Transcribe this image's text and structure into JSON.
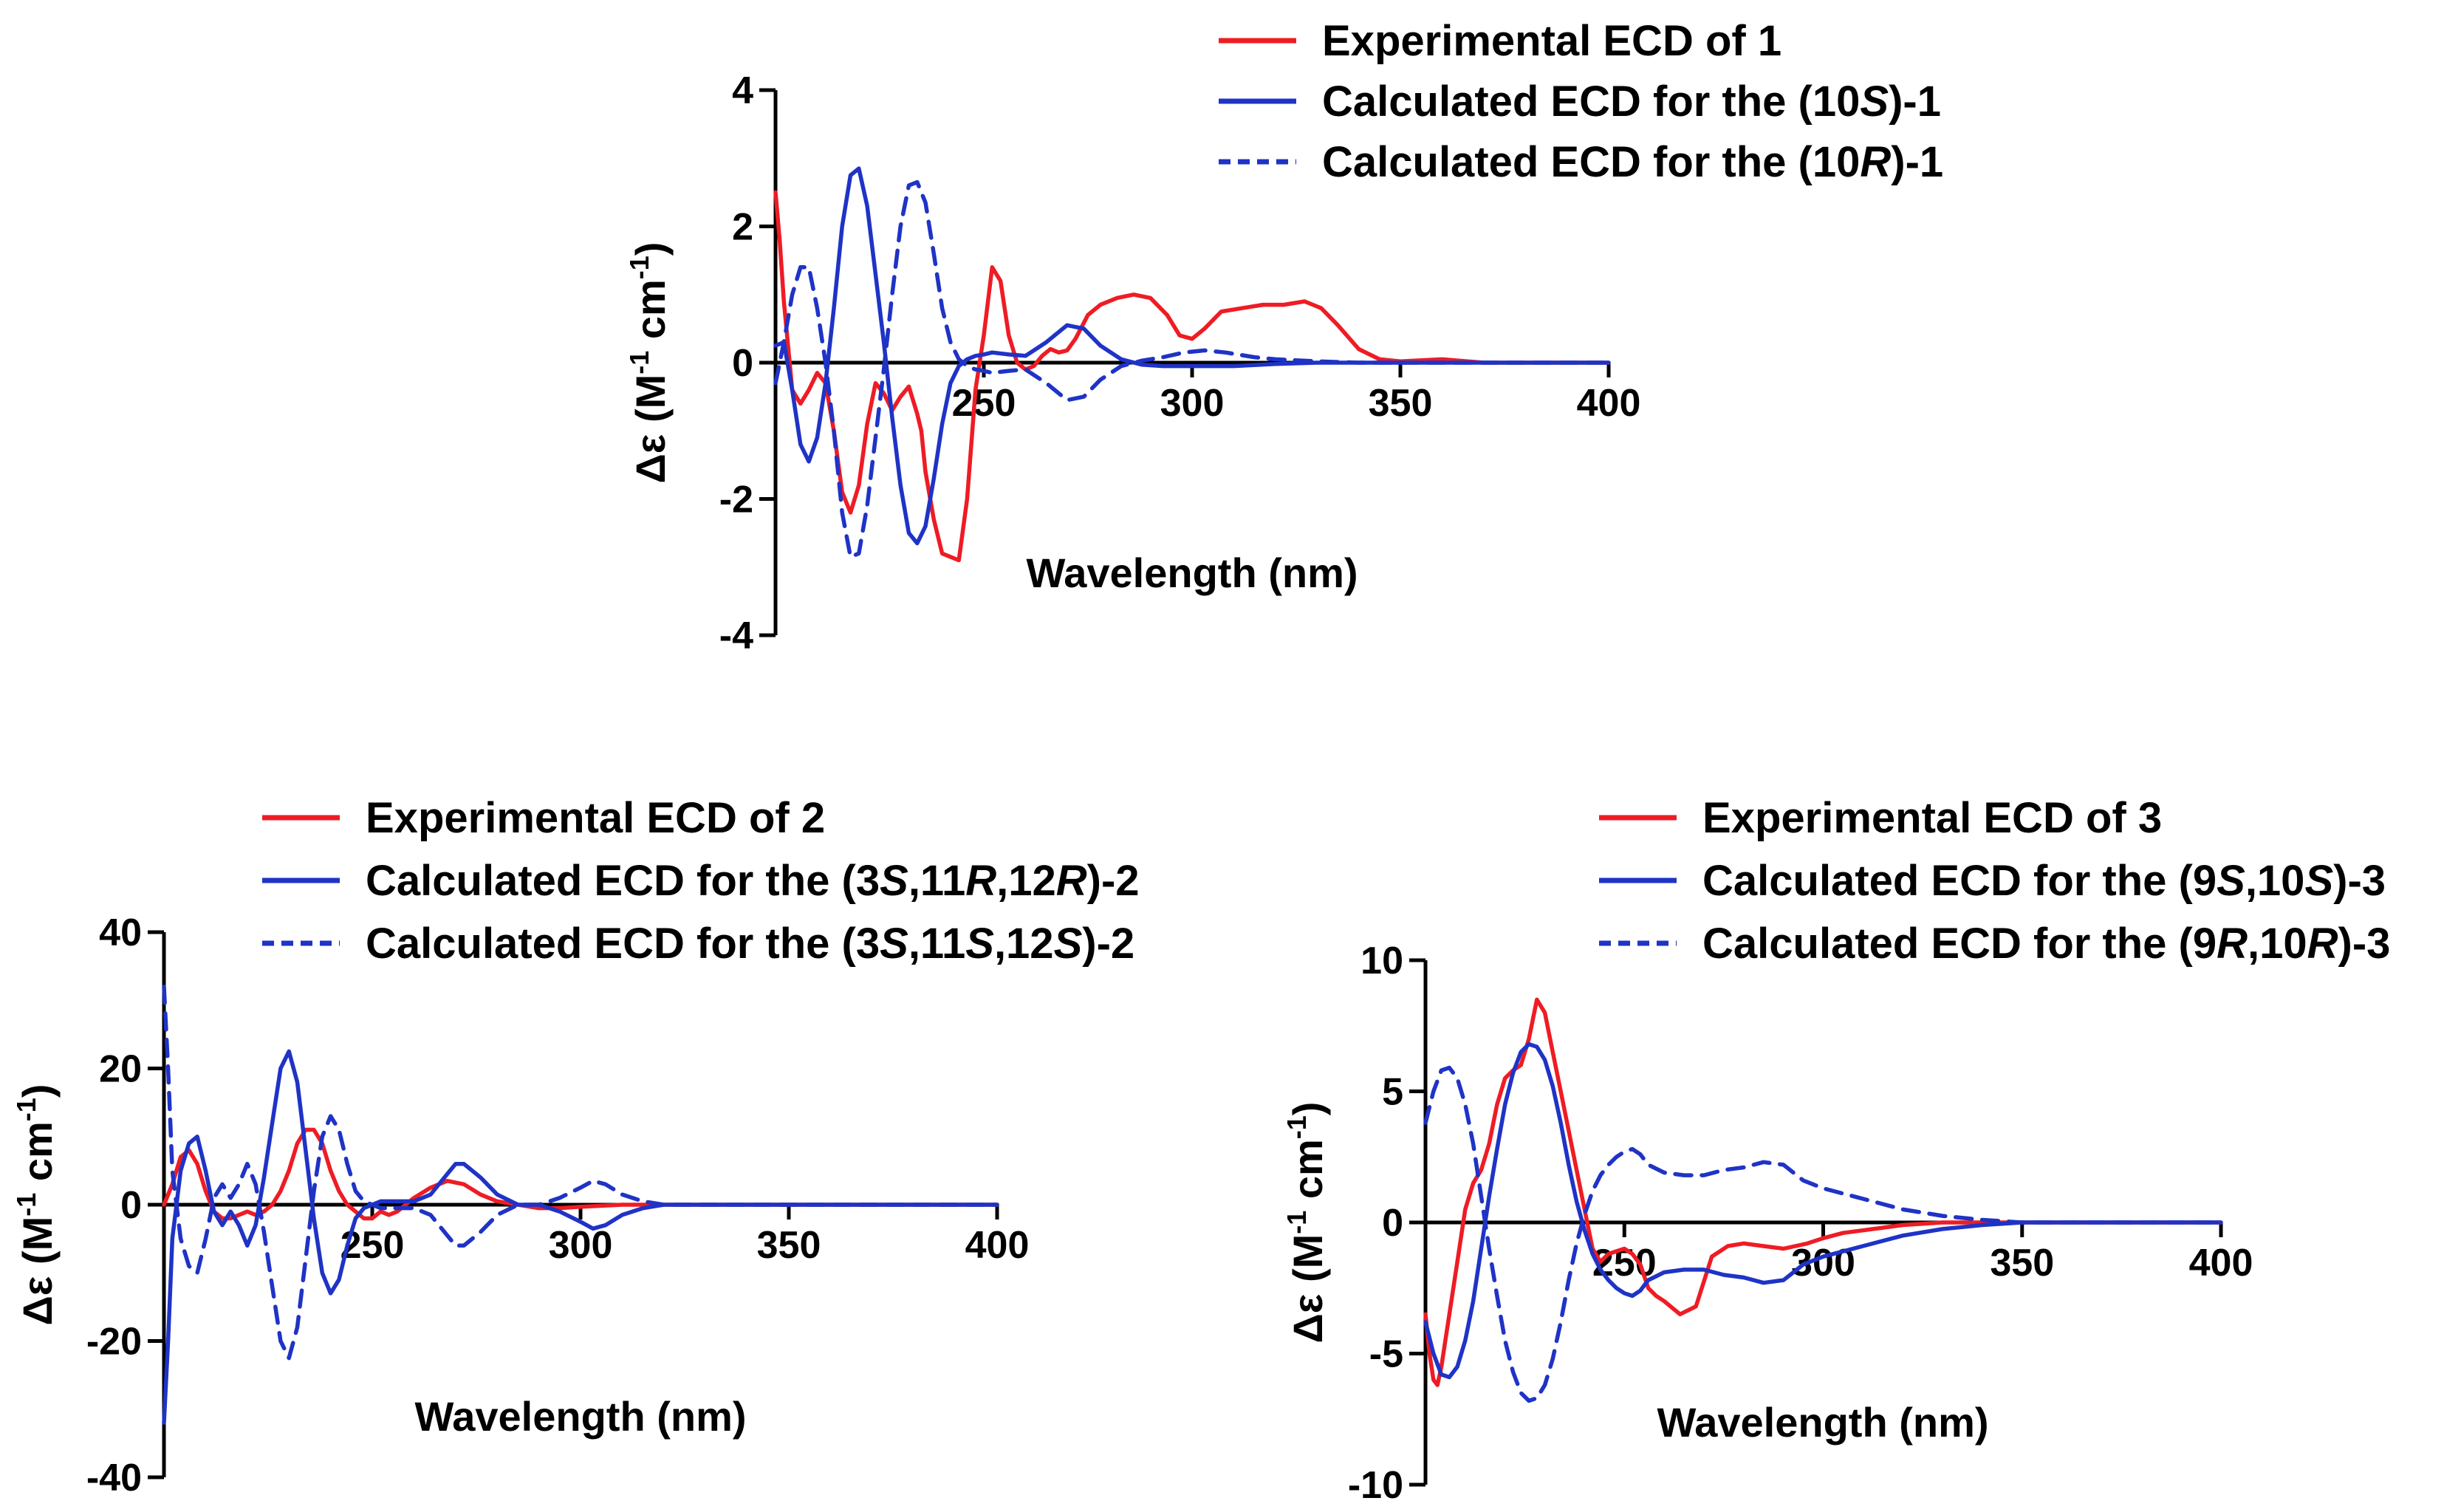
{
  "colors": {
    "experimental": "#ee1c24",
    "calculated": "#1f33c6",
    "axis": "#000000"
  },
  "chart_data": [
    {
      "type": "line",
      "panel": "compound-1",
      "title": "",
      "xlabel": "Wavelength (nm)",
      "ylabel_main": "Δε (M",
      "ylabel_sup1": "-1",
      "ylabel_mid": " cm",
      "ylabel_sup2": "-1",
      "ylabel_end": ")",
      "xlim": [
        200,
        400
      ],
      "ylim": [
        -4,
        4
      ],
      "xticks": [
        250,
        300,
        350,
        400
      ],
      "yticks": [
        -4,
        -2,
        0,
        2,
        4
      ],
      "legend_position": "top-right",
      "series": [
        {
          "name": "Experimental ECD of ",
          "name_suffix": "1",
          "color_key": "experimental",
          "dashed": false,
          "x": [
            200,
            201,
            202,
            204,
            206,
            208,
            210,
            212,
            214,
            216,
            218,
            220,
            222,
            224,
            226,
            228,
            230,
            232,
            234,
            235,
            236,
            238,
            240,
            242,
            244,
            246,
            248,
            250,
            252,
            254,
            256,
            258,
            260,
            262,
            264,
            266,
            268,
            270,
            272,
            275,
            278,
            282,
            286,
            290,
            294,
            297,
            300,
            303,
            307,
            312,
            317,
            322,
            327,
            331,
            335,
            340,
            345,
            350,
            360,
            370,
            380,
            390,
            400
          ],
          "y": [
            2.5,
            1.8,
            0.9,
            -0.4,
            -0.6,
            -0.4,
            -0.15,
            -0.3,
            -1.0,
            -1.9,
            -2.2,
            -1.8,
            -0.9,
            -0.3,
            -0.45,
            -0.7,
            -0.5,
            -0.35,
            -0.75,
            -1.0,
            -1.6,
            -2.3,
            -2.8,
            -2.85,
            -2.9,
            -2.0,
            -0.4,
            0.4,
            1.4,
            1.2,
            0.4,
            0.0,
            -0.1,
            -0.05,
            0.1,
            0.2,
            0.15,
            0.18,
            0.35,
            0.7,
            0.85,
            0.95,
            1.0,
            0.95,
            0.7,
            0.4,
            0.35,
            0.5,
            0.75,
            0.8,
            0.85,
            0.85,
            0.9,
            0.8,
            0.55,
            0.2,
            0.05,
            0.02,
            0.05,
            0.0,
            0.0,
            0.0,
            0.0
          ]
        },
        {
          "name": "Calculated ECD for the (10",
          "name_italic": "S",
          "name_suffix": ")-1",
          "color_key": "calculated",
          "dashed": false,
          "x": [
            200,
            202,
            204,
            206,
            208,
            210,
            212,
            214,
            216,
            218,
            220,
            222,
            224,
            226,
            228,
            230,
            232,
            234,
            236,
            238,
            240,
            242,
            244,
            246,
            248,
            250,
            252,
            256,
            260,
            265,
            270,
            274,
            278,
            283,
            288,
            293,
            300,
            310,
            320,
            330,
            340,
            350,
            360,
            380,
            400
          ],
          "y": [
            0.25,
            0.3,
            -0.4,
            -1.2,
            -1.45,
            -1.1,
            -0.3,
            0.8,
            2.0,
            2.75,
            2.85,
            2.3,
            1.3,
            0.3,
            -0.8,
            -1.8,
            -2.5,
            -2.65,
            -2.4,
            -1.7,
            -0.9,
            -0.3,
            -0.05,
            0.05,
            0.1,
            0.12,
            0.15,
            0.12,
            0.1,
            0.3,
            0.55,
            0.5,
            0.25,
            0.05,
            -0.03,
            -0.05,
            -0.05,
            -0.05,
            -0.02,
            0.0,
            0.0,
            0.0,
            0.0,
            0.0,
            0.0
          ]
        },
        {
          "name": "Calculated ECD for the (10",
          "name_italic": "R",
          "name_suffix": ")-1",
          "color_key": "calculated",
          "dashed": true,
          "x": [
            200,
            202,
            204,
            206,
            208,
            210,
            212,
            214,
            216,
            218,
            220,
            222,
            224,
            226,
            228,
            230,
            232,
            234,
            236,
            238,
            240,
            242,
            244,
            246,
            248,
            250,
            252,
            256,
            260,
            265,
            270,
            274,
            278,
            283,
            288,
            293,
            298,
            303,
            308,
            315,
            320,
            330,
            340,
            350,
            360,
            380,
            400
          ],
          "y": [
            -0.3,
            0.3,
            1.0,
            1.4,
            1.4,
            0.8,
            0.0,
            -1.0,
            -2.2,
            -2.85,
            -2.8,
            -2.1,
            -1.1,
            -0.1,
            1.0,
            2.0,
            2.6,
            2.65,
            2.35,
            1.6,
            0.8,
            0.3,
            0.05,
            -0.05,
            -0.1,
            -0.12,
            -0.15,
            -0.12,
            -0.1,
            -0.3,
            -0.55,
            -0.5,
            -0.25,
            -0.05,
            0.03,
            0.08,
            0.15,
            0.18,
            0.15,
            0.08,
            0.05,
            0.02,
            0.0,
            0.0,
            0.0,
            0.0,
            0.0
          ]
        }
      ]
    },
    {
      "type": "line",
      "panel": "compound-2",
      "title": "",
      "xlabel": "Wavelength (nm)",
      "ylabel_main": "Δε (M",
      "ylabel_sup1": "-1",
      "ylabel_mid": " cm",
      "ylabel_sup2": "-1",
      "ylabel_end": ")",
      "xlim": [
        200,
        400
      ],
      "ylim": [
        -40,
        40
      ],
      "xticks": [
        250,
        300,
        350,
        400
      ],
      "yticks": [
        -40,
        -20,
        0,
        20,
        40
      ],
      "legend_position": "top",
      "series": [
        {
          "name": "Experimental ECD of ",
          "name_suffix": "2",
          "color_key": "experimental",
          "dashed": false,
          "x": [
            200,
            202,
            204,
            206,
            208,
            210,
            212,
            214,
            216,
            218,
            220,
            222,
            224,
            226,
            228,
            230,
            232,
            234,
            236,
            238,
            240,
            242,
            244,
            246,
            248,
            250,
            252,
            254,
            256,
            258,
            260,
            264,
            268,
            272,
            276,
            280,
            285,
            290,
            295,
            300,
            310,
            320,
            330,
            340,
            360,
            380,
            400
          ],
          "y": [
            0,
            3,
            7,
            8,
            6,
            2,
            -1,
            -2,
            -2,
            -1.5,
            -1,
            -1.5,
            -1,
            0,
            2,
            5,
            9,
            11,
            11,
            9,
            5,
            2,
            0,
            -1,
            -2,
            -2,
            -1,
            -1.5,
            -1,
            0,
            1,
            2.5,
            3.5,
            3,
            1.5,
            0.5,
            0,
            -0.5,
            -0.5,
            -0.3,
            0,
            0,
            0,
            0,
            0,
            0,
            0
          ]
        },
        {
          "name": "Calculated ECD for the (3",
          "name_italic": "S",
          "name_mid": ",11",
          "name_italic2": "R",
          "name_mid2": ",12",
          "name_italic3": "R",
          "name_suffix": ")-2",
          "color_key": "calculated",
          "dashed": false,
          "x": [
            200,
            201,
            202,
            204,
            206,
            208,
            210,
            212,
            214,
            216,
            218,
            220,
            222,
            224,
            226,
            228,
            230,
            232,
            234,
            236,
            238,
            240,
            242,
            244,
            246,
            248,
            250,
            252,
            256,
            260,
            264,
            268,
            270,
            272,
            276,
            280,
            285,
            290,
            295,
            300,
            303,
            306,
            310,
            315,
            320,
            330,
            340,
            360,
            380,
            400
          ],
          "y": [
            -32,
            -20,
            -5,
            5,
            9,
            10,
            5,
            -1,
            -3,
            -1,
            -3,
            -6,
            -3,
            4,
            12,
            20,
            22.5,
            18,
            8,
            -2,
            -10,
            -13,
            -11,
            -6,
            -2,
            -0.5,
            0,
            0.5,
            0.5,
            0.5,
            1.5,
            4.5,
            6,
            6,
            4,
            1.5,
            0,
            0,
            -1,
            -2.5,
            -3.5,
            -3,
            -1.5,
            -0.5,
            0,
            0,
            0,
            0,
            0,
            0
          ]
        },
        {
          "name": "Calculated ECD for the (3",
          "name_italic": "S",
          "name_mid": ",11",
          "name_italic2": "S",
          "name_mid2": ",12",
          "name_italic3": "S",
          "name_suffix": ")-2",
          "color_key": "calculated",
          "dashed": true,
          "x": [
            200,
            201,
            202,
            204,
            206,
            208,
            210,
            212,
            214,
            216,
            218,
            220,
            222,
            224,
            226,
            228,
            230,
            232,
            234,
            236,
            238,
            240,
            242,
            244,
            246,
            248,
            250,
            252,
            256,
            260,
            264,
            268,
            270,
            272,
            276,
            280,
            285,
            290,
            295,
            300,
            303,
            306,
            310,
            315,
            320,
            330,
            340,
            360,
            380,
            400
          ],
          "y": [
            32,
            20,
            5,
            -5,
            -9,
            -10,
            -5,
            1,
            3,
            1,
            3,
            6,
            3,
            -4,
            -12,
            -20,
            -22.5,
            -18,
            -8,
            2,
            10,
            13,
            11,
            6,
            2,
            0.5,
            0,
            -0.5,
            -0.5,
            -0.5,
            -1.5,
            -4.5,
            -6,
            -6,
            -4,
            -1.5,
            0,
            0,
            1,
            2.5,
            3.5,
            3,
            1.5,
            0.5,
            0,
            0,
            0,
            0,
            0,
            0
          ]
        }
      ]
    },
    {
      "type": "line",
      "panel": "compound-3",
      "title": "",
      "xlabel": "Wavelength (nm)",
      "ylabel_main": "Δε (M",
      "ylabel_sup1": "-1",
      "ylabel_mid": " cm",
      "ylabel_sup2": "-1",
      "ylabel_end": ")",
      "xlim": [
        200,
        400
      ],
      "ylim": [
        -10,
        10
      ],
      "xticks": [
        250,
        300,
        350,
        400
      ],
      "yticks": [
        -10,
        -5,
        0,
        5,
        10
      ],
      "legend_position": "top",
      "series": [
        {
          "name": "Experimental ECD of ",
          "name_suffix": "3",
          "color_key": "experimental",
          "dashed": false,
          "x": [
            200,
            201,
            202,
            203,
            204,
            206,
            208,
            210,
            212,
            214,
            216,
            218,
            220,
            222,
            224,
            226,
            228,
            230,
            232,
            234,
            236,
            238,
            240,
            242,
            244,
            246,
            248,
            250,
            252,
            254,
            256,
            258,
            260,
            264,
            268,
            272,
            276,
            280,
            285,
            290,
            293,
            296,
            300,
            305,
            310,
            315,
            320,
            325,
            330,
            340,
            350,
            360,
            380,
            400
          ],
          "y": [
            -3.5,
            -5,
            -6,
            -6.2,
            -5.5,
            -3.5,
            -1.5,
            0.5,
            1.5,
            2,
            3,
            4.5,
            5.5,
            5.8,
            6,
            7,
            8.5,
            8,
            6.5,
            5,
            3.5,
            2,
            0.5,
            -1,
            -1.5,
            -1.2,
            -1.1,
            -1.0,
            -1.2,
            -1.6,
            -2.5,
            -2.8,
            -3,
            -3.5,
            -3.2,
            -1.3,
            -0.9,
            -0.8,
            -0.9,
            -1,
            -0.9,
            -0.8,
            -0.6,
            -0.4,
            -0.3,
            -0.2,
            -0.1,
            -0.05,
            0,
            0,
            0,
            0,
            0,
            0
          ]
        },
        {
          "name": "Calculated ECD for the (9",
          "name_italic": "S",
          "name_mid": ",10",
          "name_italic2": "S",
          "name_suffix": ")-3",
          "color_key": "calculated",
          "dashed": false,
          "x": [
            200,
            202,
            204,
            206,
            208,
            210,
            212,
            214,
            216,
            218,
            220,
            222,
            224,
            226,
            228,
            230,
            232,
            234,
            236,
            238,
            240,
            242,
            244,
            246,
            248,
            250,
            252,
            254,
            256,
            260,
            265,
            270,
            275,
            280,
            285,
            290,
            295,
            300,
            310,
            320,
            330,
            340,
            350,
            360,
            380,
            400
          ],
          "y": [
            -3.8,
            -5,
            -5.8,
            -5.9,
            -5.5,
            -4.5,
            -3,
            -1,
            1,
            2.8,
            4.5,
            5.7,
            6.5,
            6.8,
            6.7,
            6.2,
            5.2,
            3.8,
            2.2,
            0.8,
            -0.3,
            -1.2,
            -1.8,
            -2.2,
            -2.5,
            -2.7,
            -2.8,
            -2.6,
            -2.2,
            -1.9,
            -1.8,
            -1.8,
            -2.0,
            -2.1,
            -2.3,
            -2.2,
            -1.6,
            -1.3,
            -0.9,
            -0.5,
            -0.25,
            -0.1,
            0,
            0,
            0,
            0
          ]
        },
        {
          "name": "Calculated ECD for the (9",
          "name_italic": "R",
          "name_mid": ",10",
          "name_italic2": "R",
          "name_suffix": ")-3",
          "color_key": "calculated",
          "dashed": true,
          "x": [
            200,
            202,
            204,
            206,
            208,
            210,
            212,
            214,
            216,
            218,
            220,
            222,
            224,
            226,
            228,
            230,
            232,
            234,
            236,
            238,
            240,
            242,
            244,
            246,
            248,
            250,
            252,
            254,
            256,
            260,
            265,
            270,
            275,
            280,
            285,
            290,
            295,
            300,
            310,
            320,
            330,
            340,
            350,
            360,
            380,
            400
          ],
          "y": [
            3.8,
            5,
            5.8,
            5.9,
            5.5,
            4.5,
            3,
            1,
            -1,
            -2.8,
            -4.5,
            -5.7,
            -6.5,
            -6.8,
            -6.7,
            -6.2,
            -5.2,
            -3.8,
            -2.2,
            -0.8,
            0.3,
            1.2,
            1.8,
            2.2,
            2.5,
            2.7,
            2.8,
            2.6,
            2.2,
            1.9,
            1.8,
            1.8,
            2.0,
            2.1,
            2.3,
            2.2,
            1.6,
            1.3,
            0.9,
            0.5,
            0.25,
            0.1,
            0,
            0,
            0,
            0
          ]
        }
      ]
    }
  ]
}
